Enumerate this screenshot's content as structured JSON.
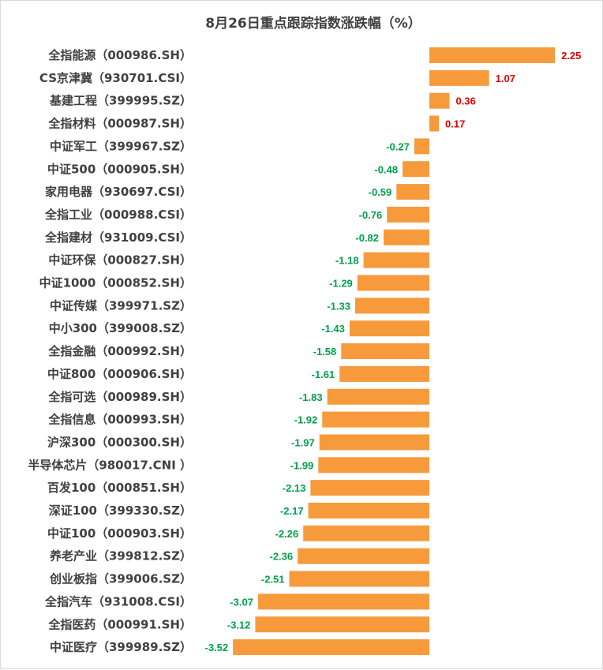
{
  "chart_data": {
    "type": "bar",
    "orientation": "horizontal",
    "title": "8月26日重点跟踪指数涨跌幅（%）",
    "xlabel": "",
    "ylabel": "",
    "grid": false,
    "legend": "none",
    "xlim": [
      -3.52,
      2.25
    ],
    "categories": [
      "全指能源（000986.SH）",
      "CS京津冀（930701.CSI）",
      "基建工程（399995.SZ）",
      "全指材料（000987.SH）",
      "中证军工（399967.SZ）",
      "中证500（000905.SH）",
      "家用电器（930697.CSI）",
      "全指工业（000988.CSI）",
      "全指建材（931009.CSI）",
      "中证环保（000827.SH）",
      "中证1000（000852.SH）",
      "中证传媒（399971.SZ）",
      "中小300（399008.SZ）",
      "全指金融（000992.SH）",
      "中证800（000906.SH）",
      "全指可选（000989.SH）",
      "全指信息（000993.SH）",
      "沪深300（000300.SH）",
      "半导体芯片（980017.CNI ）",
      "百发100（000851.SH）",
      "深证100（399330.SZ）",
      "中证100（000903.SH）",
      "养老产业（399812.SZ）",
      "创业板指（399006.SZ）",
      "全指汽车（931008.CSI）",
      "全指医药（000991.SH）",
      "中证医疗（399989.SZ）"
    ],
    "values": [
      2.25,
      1.07,
      0.36,
      0.17,
      -0.27,
      -0.48,
      -0.59,
      -0.76,
      -0.82,
      -1.18,
      -1.29,
      -1.33,
      -1.43,
      -1.58,
      -1.61,
      -1.83,
      -1.92,
      -1.97,
      -1.99,
      -2.13,
      -2.17,
      -2.26,
      -2.36,
      -2.51,
      -3.07,
      -3.12,
      -3.52
    ],
    "value_labels": [
      "2.25",
      "1.07",
      "0.36",
      "0.17",
      "-0.27",
      "-0.48",
      "-0.59",
      "-0.76",
      "-0.82",
      "-1.18",
      "-1.29",
      "-1.33",
      "-1.43",
      "-1.58",
      "-1.61",
      "-1.83",
      "-1.92",
      "-1.97",
      "-1.99",
      "-2.13",
      "-2.17",
      "-2.26",
      "-2.36",
      "-2.51",
      "-3.07",
      "-3.12",
      "-3.52"
    ]
  },
  "colors": {
    "bar": "#F79A3C",
    "positive": "#E00000",
    "negative": "#00A04A"
  }
}
